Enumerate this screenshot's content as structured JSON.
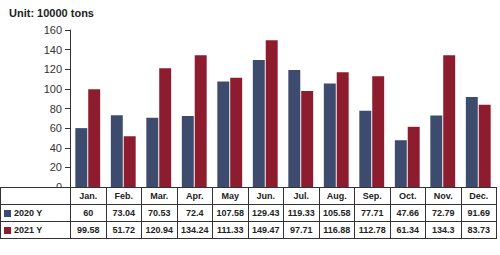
{
  "chart_data": {
    "type": "bar",
    "ylabel": "Unit: 10000 tons",
    "categories": [
      "Jan.",
      "Feb.",
      "Mar.",
      "Apr.",
      "May",
      "Jun.",
      "Jul.",
      "Aug.",
      "Sep.",
      "Oct.",
      "Nov.",
      "Dec."
    ],
    "series": [
      {
        "name": "2020 Y",
        "color": "#3d4b6e",
        "values": [
          60,
          73.04,
          70.53,
          72.4,
          107.58,
          129.43,
          119.33,
          105.58,
          77.71,
          47.66,
          72.79,
          91.69
        ]
      },
      {
        "name": "2021 Y",
        "color": "#8c1c2e",
        "values": [
          99.58,
          51.72,
          120.94,
          134.24,
          111.33,
          149.47,
          97.71,
          116.88,
          112.78,
          61.34,
          134.3,
          83.73
        ]
      }
    ],
    "ylim": [
      0,
      160
    ],
    "yticks": [
      0,
      20,
      40,
      60,
      80,
      100,
      120,
      140,
      160
    ],
    "grid": false
  }
}
